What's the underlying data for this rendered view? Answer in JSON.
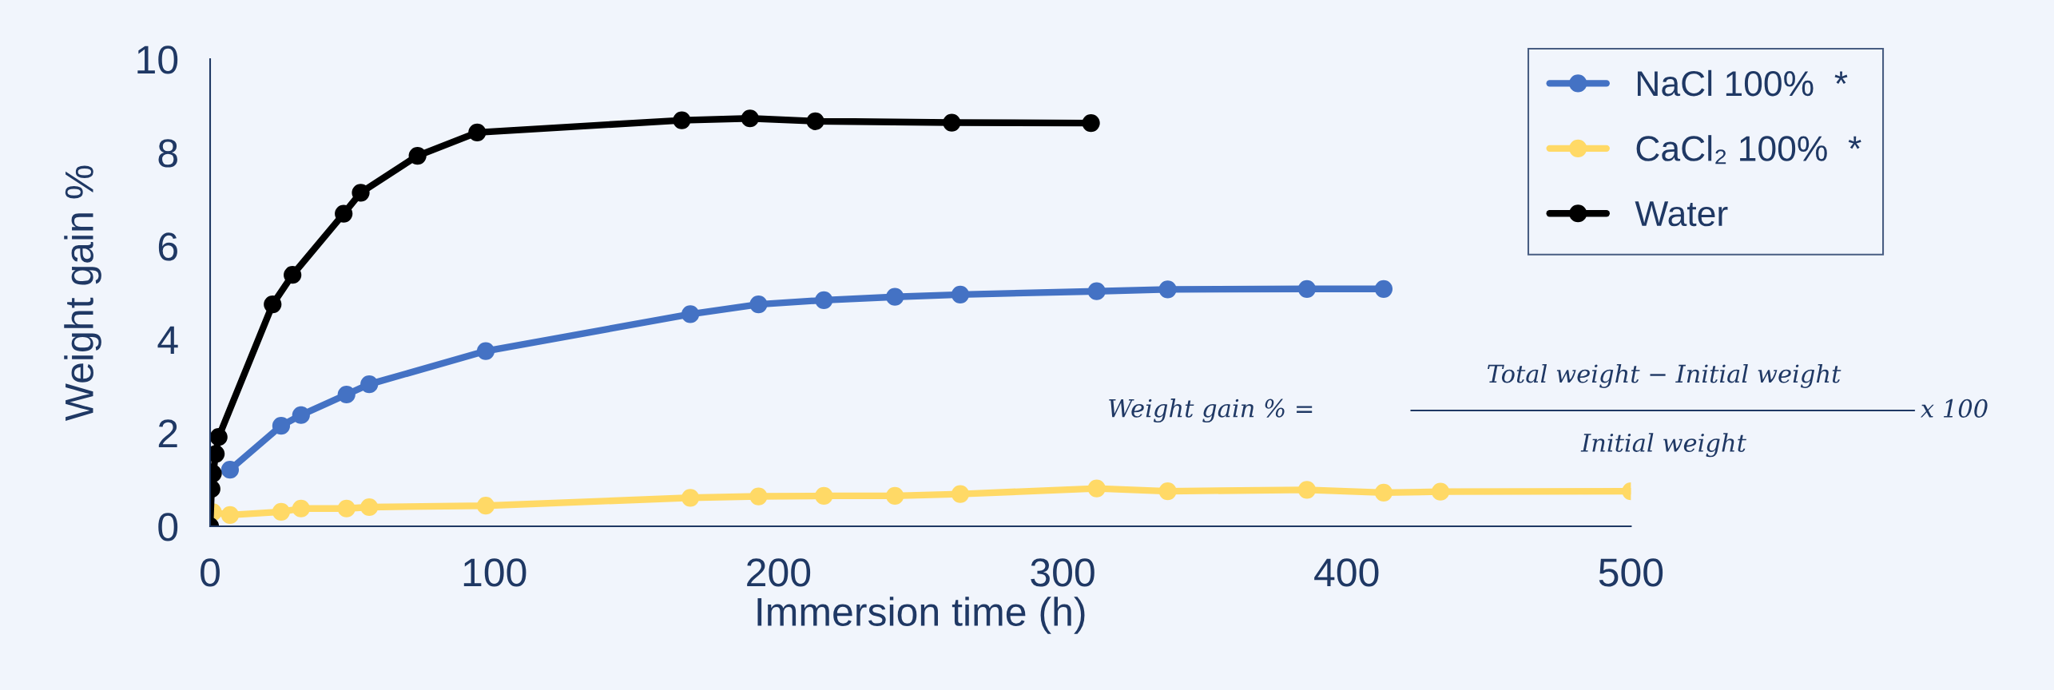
{
  "chart_data": {
    "type": "line",
    "xlabel": "Immersion time (h)",
    "ylabel": "Weight gain %",
    "xlim": [
      0,
      500
    ],
    "xticks": [
      0,
      100,
      200,
      300,
      400,
      500
    ],
    "ylim": [
      0,
      10
    ],
    "yticks": [
      0,
      2,
      4,
      6,
      8,
      10
    ],
    "grid": false,
    "legend": "top right",
    "marker": "circle",
    "line_style": "solid",
    "series": [
      {
        "name": "NaCl 100%  *",
        "color": "#4472c4",
        "x": [
          7,
          25,
          32,
          48,
          56,
          97,
          169,
          193,
          216,
          241,
          264,
          312,
          337,
          386,
          413
        ],
        "values": [
          1.21,
          2.15,
          2.38,
          2.82,
          3.04,
          3.75,
          4.54,
          4.75,
          4.84,
          4.91,
          4.96,
          5.03,
          5.07,
          5.08,
          5.08
        ]
      },
      {
        "name": "CaCl₂ 100%  *",
        "color": "#ffd966",
        "x": [
          1,
          7,
          25,
          32,
          48,
          56,
          97,
          169,
          193,
          216,
          241,
          264,
          312,
          337,
          386,
          413,
          433,
          500
        ],
        "values": [
          0.3,
          0.24,
          0.31,
          0.38,
          0.38,
          0.41,
          0.44,
          0.61,
          0.64,
          0.65,
          0.65,
          0.69,
          0.81,
          0.75,
          0.78,
          0.72,
          0.74,
          0.75
        ]
      },
      {
        "name": "Water",
        "color": "#000000",
        "x": [
          0,
          0.5,
          1,
          2,
          3,
          22,
          29,
          47,
          53,
          73,
          94,
          166,
          190,
          213,
          261,
          310
        ],
        "values": [
          0,
          0.8,
          1.13,
          1.55,
          1.91,
          4.75,
          5.38,
          6.69,
          7.14,
          7.93,
          8.43,
          8.69,
          8.73,
          8.67,
          8.64,
          8.63
        ]
      }
    ],
    "annotations": [
      "Weight gain % =",
      "Total weight − Initial weight",
      "Initial weight",
      "x 100"
    ]
  }
}
